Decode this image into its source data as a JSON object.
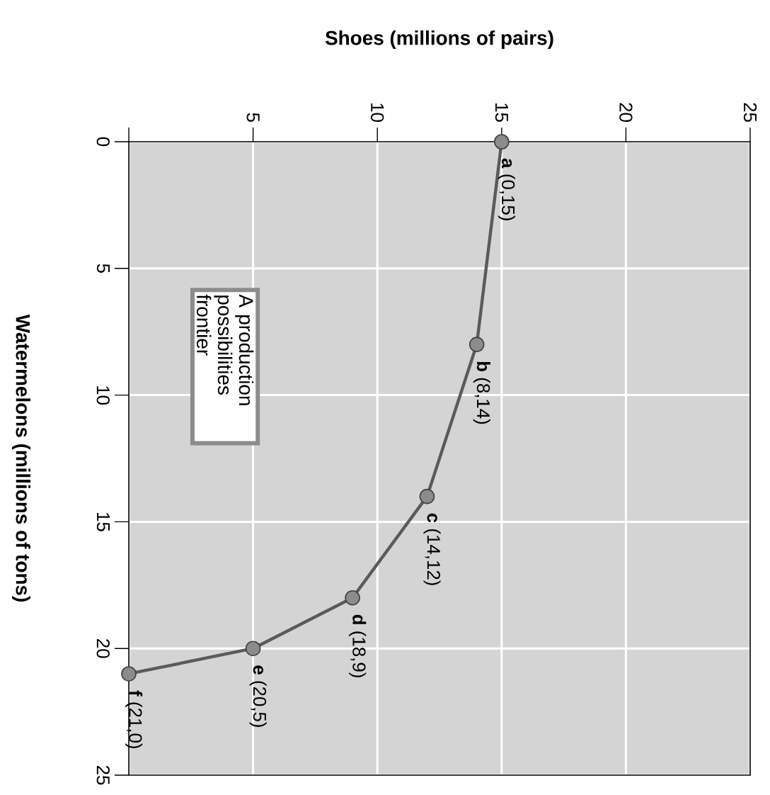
{
  "chart_data": {
    "type": "line",
    "xlabel": "Shoes (millions of pairs)",
    "ylabel": "Watermelons (millions of tons)",
    "x": [
      15,
      14,
      12,
      9,
      5,
      0
    ],
    "values": [
      0,
      8,
      14,
      18,
      20,
      21
    ],
    "color": "#5a5a5a",
    "marker": "circle",
    "grid": true,
    "xlim": [
      0,
      25
    ],
    "ylim": [
      25,
      0
    ],
    "xticks": [
      {
        "value": 0,
        "label": null
      },
      5,
      10,
      15,
      20,
      25
    ],
    "yticks": [
      0,
      5,
      10,
      15,
      20,
      25
    ],
    "annotations": [
      {
        "text": "**a** (0,15)",
        "x": 15,
        "y": 0
      },
      {
        "text": "**b** (8,14)",
        "x": 14,
        "y": 8
      },
      {
        "text": "**c** (14,12)",
        "x": 12,
        "y": 14
      },
      {
        "text": "**d** (18,9)",
        "x": 9,
        "y": 18
      },
      {
        "text": "**e** (20,5)",
        "x": 5,
        "y": 20
      },
      {
        "text": "**f** (21,0)",
        "x": 0,
        "y": 21
      },
      "A production possibilities frontier"
    ]
  }
}
